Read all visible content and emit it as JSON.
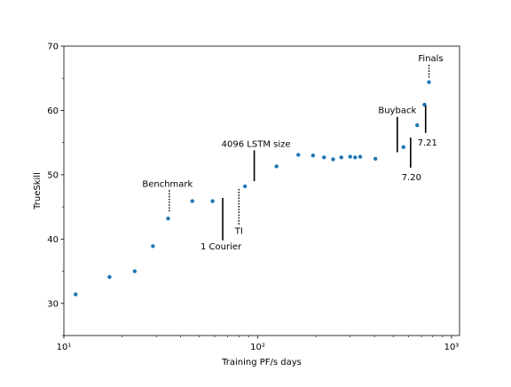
{
  "chart_data": {
    "type": "scatter",
    "title": "",
    "xlabel": "Training PF/s days",
    "ylabel": "TrueSkill",
    "x_scale": "log",
    "xlim": [
      10,
      1100
    ],
    "ylim": [
      25,
      70
    ],
    "x_ticks": [
      {
        "value": 10,
        "label": "10¹"
      },
      {
        "value": 100,
        "label": "10²"
      },
      {
        "value": 1000,
        "label": "10³"
      }
    ],
    "y_ticks": [
      30,
      40,
      50,
      60,
      70
    ],
    "grid": false,
    "marker_color": "#1f77b4",
    "series": [
      {
        "x": [
          11.5,
          17.2,
          23.2,
          28.8,
          34.5,
          46,
          58.5,
          86,
          125,
          162,
          193,
          220,
          245,
          270,
          300,
          318,
          338,
          405,
          565,
          665,
          725,
          765
        ],
        "y": [
          31.4,
          34.1,
          35,
          38.9,
          43.2,
          45.9,
          45.9,
          48.2,
          51.3,
          53.1,
          53,
          52.7,
          52.4,
          52.7,
          52.8,
          52.7,
          52.8,
          52.5,
          54.3,
          57.7,
          60.9,
          64.4
        ]
      }
    ],
    "annotations": [
      {
        "text": "Benchmark",
        "marker_x": 35,
        "marker_y_range": [
          44.2,
          47.6
        ],
        "style": "dotted"
      },
      {
        "text": "1 Courier",
        "marker_x": 66,
        "marker_y_range": [
          39.8,
          46.4
        ],
        "style": "solid"
      },
      {
        "text": "TI",
        "marker_x": 80,
        "marker_y_range": [
          42.2,
          47.8
        ],
        "style": "dotted"
      },
      {
        "text": "4096 LSTM size",
        "marker_x": 96,
        "marker_y_range": [
          49,
          53.8
        ],
        "style": "solid"
      },
      {
        "text": "Buyback",
        "marker_x": 525,
        "marker_y_range": [
          53.5,
          59
        ],
        "style": "solid"
      },
      {
        "text": "7.20",
        "marker_x": 615,
        "marker_y_range": [
          51.1,
          55.8
        ],
        "style": "solid"
      },
      {
        "text": "7.21",
        "marker_x": 735,
        "marker_y_range": [
          56.5,
          60.8
        ],
        "style": "solid"
      },
      {
        "text": "Finals",
        "marker_x": 765,
        "marker_y_range": [
          65.1,
          67.1
        ],
        "style": "dotted"
      }
    ]
  }
}
